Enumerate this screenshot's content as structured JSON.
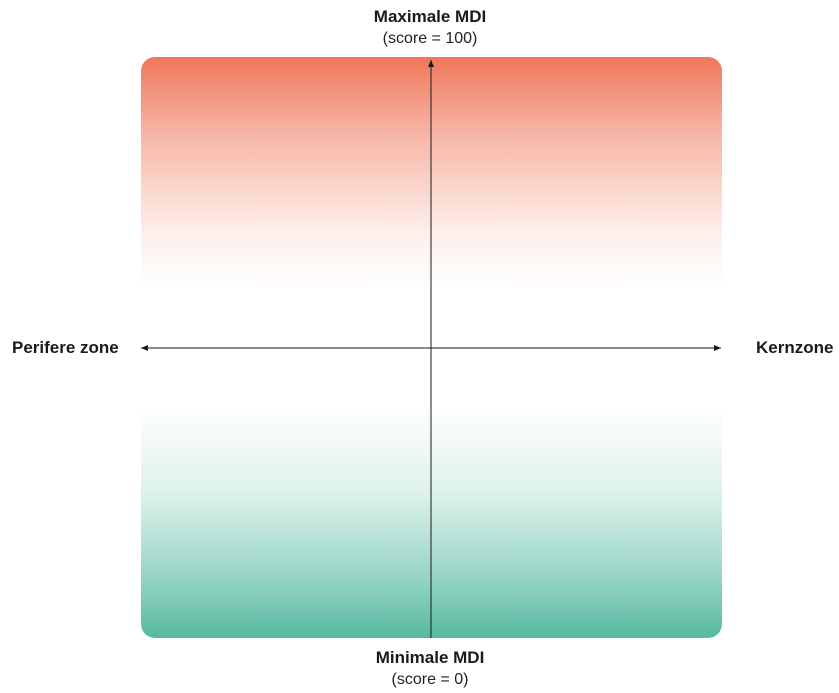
{
  "diagram": {
    "top": {
      "title": "Maximale MDI",
      "subtitle": "(score = 100)"
    },
    "bottom": {
      "title": "Minimale MDI",
      "subtitle": "(score = 0)"
    },
    "left_label": "Perifere zone",
    "right_label": "Kernzone",
    "colors": {
      "top_gradient": "#ef775a",
      "bottom_gradient": "#56b9a0",
      "axis": "#1a1a1a"
    }
  }
}
